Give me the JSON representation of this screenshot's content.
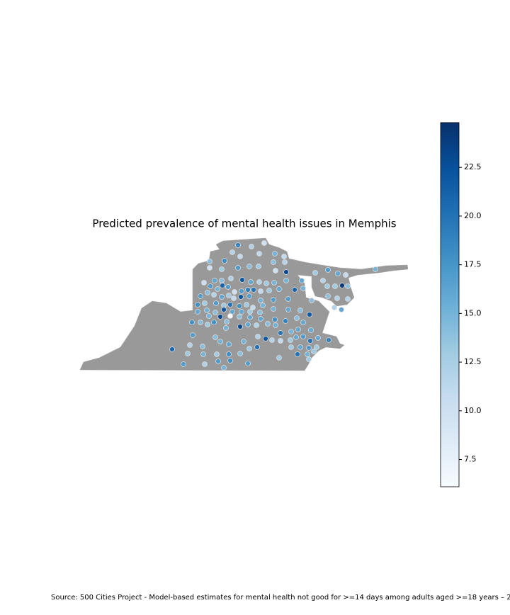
{
  "chart_data": {
    "type": "scatter",
    "title": "Predicted prevalence of mental health issues in Memphis",
    "source": "Source: 500 Cities Project - Model-based estimates for mental health not good for >=14 days among adults aged >=18 years – 2",
    "colormap": "Blues",
    "clim": [
      6.1,
      24.8
    ],
    "cticks": [
      7.5,
      {
        "value": 10,
        "label": "10.0"
      },
      12.5,
      {
        "value": 15,
        "label": "15.0"
      },
      17.5,
      {
        "value": 20,
        "label": "20.0"
      },
      22.5
    ],
    "values": [
      19,
      12,
      12,
      10,
      11,
      15,
      11,
      14,
      18,
      11,
      14,
      12,
      10,
      13,
      17,
      14,
      13,
      10,
      23,
      13,
      17,
      16,
      11,
      15,
      10,
      16,
      14,
      12,
      22,
      16,
      12,
      13,
      15,
      15,
      16,
      12,
      13,
      24,
      14,
      17,
      15,
      21,
      17,
      10,
      17,
      19,
      20,
      11,
      13,
      16,
      21,
      15,
      13,
      17,
      14,
      12,
      16,
      13,
      11,
      22,
      17,
      15,
      17,
      17,
      14,
      14,
      12,
      12,
      18,
      13,
      17,
      13,
      20,
      18,
      13,
      11,
      15,
      15,
      16,
      14,
      22,
      12,
      16,
      16,
      15,
      14,
      22,
      16,
      16,
      13,
      14,
      15,
      23,
      6.1,
      14,
      16,
      16,
      18,
      19,
      14,
      16,
      18,
      14,
      13,
      18,
      14,
      23,
      16,
      12,
      14,
      15,
      20,
      15,
      16,
      16,
      17,
      14,
      15,
      12,
      22,
      12,
      11,
      13,
      16,
      17,
      20,
      16,
      19,
      12,
      14,
      15,
      16,
      15,
      13,
      20,
      13,
      16,
      17,
      13,
      21,
      13,
      15,
      13,
      18,
      14,
      20,
      15,
      13,
      17,
      12,
      17,
      18,
      17,
      13,
      13,
      15
    ]
  }
}
